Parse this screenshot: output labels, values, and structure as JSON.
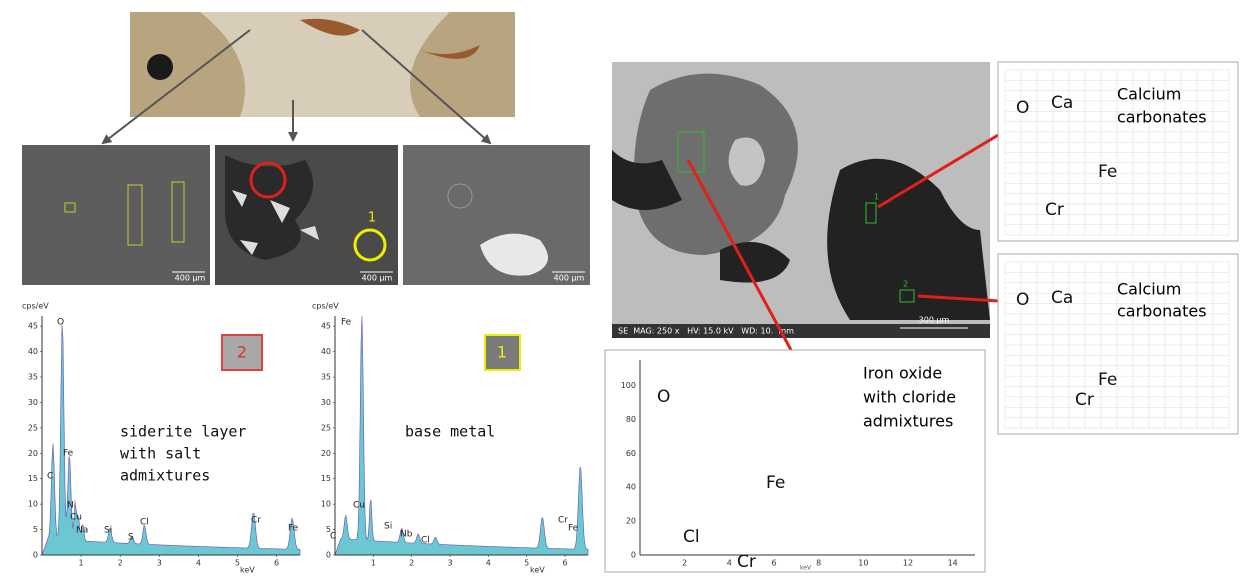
{
  "sem_panels": [
    {
      "scale_bar": "400 µm"
    },
    {
      "scale_bar": "400 µm",
      "marker": "1"
    },
    {
      "scale_bar": "400 µm"
    }
  ],
  "left_spectra": [
    {
      "y_unit": "cps/eV",
      "x_unit": "keV",
      "ylim": [
        0,
        47
      ],
      "xlim": [
        0,
        6.6
      ],
      "yticks": [
        0,
        5,
        10,
        15,
        20,
        25,
        30,
        35,
        40,
        45
      ],
      "xticks": [
        1,
        2,
        3,
        4,
        5,
        6
      ],
      "badge": "2",
      "caption": [
        "siderite layer",
        "with salt",
        "admixtures"
      ],
      "peak_labels": [
        "C",
        "O",
        "Fe",
        "Ni",
        "Cu",
        "Na",
        "Si",
        "S",
        "Cl",
        "Cr",
        "Fe"
      ]
    },
    {
      "y_unit": "cps/eV",
      "x_unit": "keV",
      "ylim": [
        0,
        47
      ],
      "xlim": [
        0,
        6.6
      ],
      "yticks": [
        0,
        5,
        10,
        15,
        20,
        25,
        30,
        35,
        40,
        45
      ],
      "xticks": [
        1,
        2,
        3,
        4,
        5,
        6
      ],
      "badge": "1",
      "caption": [
        "base metal"
      ],
      "peak_labels": [
        "C",
        "Fe",
        "Cu",
        "Si",
        "Nb",
        "Cl",
        "Cr",
        "Fe"
      ]
    }
  ],
  "sem_overview": {
    "info": "SE  MAG: 250 x   HV: 15.0 kV   WD: 10.  mm",
    "scale_bar": "300 µm",
    "markers": [
      "1",
      "2"
    ]
  },
  "right_spectra": [
    {
      "peak_labels": [
        "O",
        "Ca",
        "Cr",
        "Fe"
      ],
      "caption": [
        "Calcium",
        "carbonates"
      ]
    },
    {
      "peak_labels": [
        "O",
        "Ca",
        "Cr",
        "Fe"
      ],
      "caption": [
        "Calcium",
        "carbonates"
      ]
    },
    {
      "peak_labels": [
        "O",
        "Cl",
        "Cr",
        "Fe"
      ],
      "caption": [
        "Iron oxide",
        "with cloride",
        "admixtures"
      ],
      "x_unit": "keV",
      "ylim": [
        0,
        115
      ],
      "xlim": [
        0,
        15
      ],
      "yticks": [
        0,
        20,
        40,
        60,
        80,
        100
      ],
      "xticks": [
        2,
        4,
        6,
        8,
        10,
        12,
        14
      ]
    }
  ]
}
